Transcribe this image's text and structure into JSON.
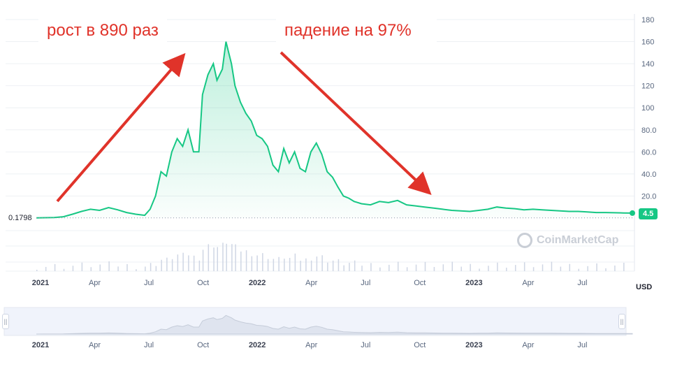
{
  "annotations": {
    "growth": "рост в 890 раз",
    "decline": "падение на 97%"
  },
  "colors": {
    "line": "#16c784",
    "arrow": "#e0332a",
    "area_top": "#16c784",
    "volume": "#cfd6e4"
  },
  "watermark": "CoinMarketCap",
  "currency": "USD",
  "base_price_label": "0.1798",
  "last_price_label": "4.5",
  "chart_data": {
    "type": "line",
    "title": "",
    "xlabel": "",
    "ylabel": "",
    "ylim": [
      0,
      180
    ],
    "y_ticks": [
      "180",
      "160",
      "140",
      "120",
      "100",
      "80.0",
      "60.0",
      "40.0",
      "20.0"
    ],
    "y_tick_values": [
      180,
      160,
      140,
      120,
      100,
      80,
      60,
      40,
      20
    ],
    "x_ticks": [
      {
        "label": "2021",
        "month": 0,
        "bold": true
      },
      {
        "label": "Apr",
        "month": 3,
        "bold": false
      },
      {
        "label": "Jul",
        "month": 6,
        "bold": false
      },
      {
        "label": "Oct",
        "month": 9,
        "bold": false
      },
      {
        "label": "2022",
        "month": 12,
        "bold": true
      },
      {
        "label": "Apr",
        "month": 15,
        "bold": false
      },
      {
        "label": "Jul",
        "month": 18,
        "bold": false
      },
      {
        "label": "Oct",
        "month": 21,
        "bold": false
      },
      {
        "label": "2023",
        "month": 24,
        "bold": true
      },
      {
        "label": "Apr",
        "month": 27,
        "bold": false
      },
      {
        "label": "Jul",
        "month": 30,
        "bold": false
      }
    ],
    "series": [
      {
        "x": [
          0,
          0.5,
          1.0,
          1.5,
          2.0,
          2.5,
          3.0,
          3.5,
          4.0,
          4.5,
          5.0,
          5.5,
          6.0,
          6.3,
          6.6,
          6.9,
          7.2,
          7.5,
          7.8,
          8.1,
          8.4,
          8.7,
          9.0,
          9.2,
          9.5,
          9.8,
          10.0,
          10.3,
          10.5,
          10.8,
          11.0,
          11.3,
          11.6,
          11.9,
          12.2,
          12.5,
          12.8,
          13.1,
          13.4,
          13.7,
          14.0,
          14.3,
          14.6,
          14.9,
          15.2,
          15.5,
          15.8,
          16.1,
          16.4,
          16.7,
          17.0,
          17.3,
          17.6,
          18.0,
          18.5,
          19.0,
          19.5,
          20.0,
          20.5,
          21.0,
          21.5,
          22.0,
          22.5,
          23.0,
          23.5,
          24.0,
          24.5,
          25.0,
          25.5,
          26.0,
          26.5,
          27.0,
          27.5,
          28.0,
          28.5,
          29.0,
          29.5,
          30.0,
          30.5,
          31.0,
          31.5,
          32.0,
          32.5,
          33.0
        ],
        "y": [
          0.18,
          0.3,
          0.5,
          1.2,
          3.5,
          6.0,
          8.0,
          7.0,
          9.5,
          7.5,
          5.0,
          3.5,
          2.5,
          8.0,
          20.0,
          42.0,
          38.0,
          60.0,
          72.0,
          65.0,
          80.0,
          60.0,
          60.0,
          112.0,
          130.0,
          140.0,
          125.0,
          135.0,
          160.0,
          140.0,
          120.0,
          105.0,
          95.0,
          88.0,
          75.0,
          72.0,
          65.0,
          48.0,
          42.0,
          63.0,
          50.0,
          60.0,
          45.0,
          42.0,
          60.0,
          68.0,
          58.0,
          42.0,
          37.0,
          28.0,
          20.0,
          18.0,
          15.0,
          13.0,
          12.0,
          15.0,
          14.0,
          16.0,
          12.0,
          11.0,
          10.0,
          9.0,
          8.0,
          7.0,
          6.5,
          6.0,
          7.0,
          8.0,
          10.0,
          9.0,
          8.5,
          7.5,
          8.0,
          7.5,
          7.0,
          6.5,
          6.0,
          6.0,
          5.5,
          5.0,
          5.0,
          4.8,
          4.6,
          4.5
        ]
      }
    ]
  }
}
